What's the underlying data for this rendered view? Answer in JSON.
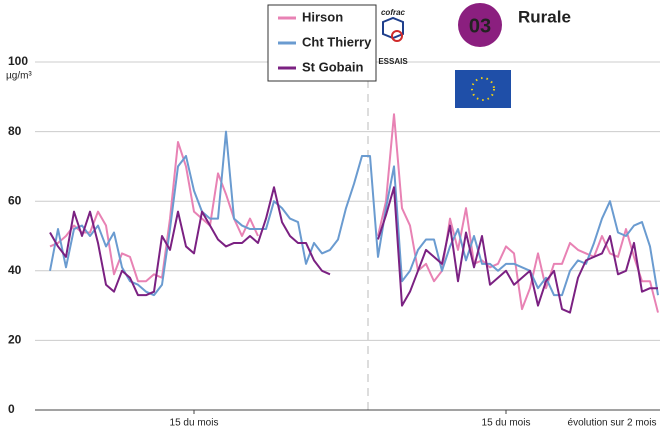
{
  "chart_data": {
    "type": "line",
    "title": "Rurale",
    "badge": "03",
    "unit": "µg/m³",
    "logos": [
      "cofrac",
      "ESSAIS"
    ],
    "annotation": "évolution sur 2 mois",
    "categories": [
      null,
      null,
      null,
      null,
      null,
      null,
      null,
      null,
      null,
      null,
      null,
      null,
      null,
      null,
      null,
      null,
      null,
      null,
      "15 du mois",
      null,
      null,
      null,
      null,
      null,
      null,
      null,
      null,
      null,
      null,
      null,
      null,
      null,
      null,
      null,
      null,
      null,
      null,
      null,
      null,
      null,
      null,
      null,
      null,
      null,
      null,
      null,
      null,
      null,
      null,
      null,
      null,
      null,
      null,
      null,
      null,
      null,
      null,
      "15 du mois",
      null,
      null,
      null,
      null,
      null,
      null,
      null,
      null,
      null,
      null,
      null,
      null,
      null,
      null,
      null,
      null,
      null,
      null,
      null
    ],
    "series": [
      {
        "name": "Hirson",
        "color": "#e882b4",
        "values": [
          47,
          48,
          50,
          53,
          51,
          51,
          57,
          53,
          39,
          45,
          44,
          37,
          37,
          39,
          38,
          55,
          77,
          70,
          57,
          55,
          53,
          68,
          62,
          55,
          50,
          55,
          50,
          null,
          null,
          null,
          null,
          null,
          null,
          null,
          null,
          null,
          null,
          null,
          null,
          null,
          null,
          50,
          60,
          85,
          58,
          53,
          40,
          42,
          37,
          40,
          55,
          46,
          58,
          42,
          43,
          41,
          42,
          47,
          45,
          29,
          35,
          45,
          35,
          42,
          42,
          48,
          46,
          45,
          44,
          50,
          45,
          44,
          52,
          44,
          37,
          37,
          28
        ]
      },
      {
        "name": "Cht Thierry",
        "color": "#6a9bd0",
        "values": [
          40,
          52,
          41,
          52,
          53,
          50,
          53,
          47,
          51,
          41,
          37,
          36,
          34,
          33,
          36,
          52,
          70,
          73,
          63,
          57,
          55,
          55,
          80,
          55,
          53,
          52,
          52,
          52,
          60,
          58,
          55,
          54,
          42,
          48,
          45,
          46,
          49,
          58,
          65,
          73,
          73,
          44,
          58,
          70,
          37,
          40,
          46,
          49,
          49,
          40,
          47,
          52,
          43,
          50,
          42,
          42,
          40,
          42,
          42,
          41,
          40,
          35,
          38,
          33,
          33,
          40,
          43,
          42,
          48,
          55,
          60,
          51,
          50,
          53,
          54,
          47,
          33
        ]
      },
      {
        "name": "St Gobain",
        "color": "#7b2182",
        "values": [
          51,
          47,
          44,
          57,
          50,
          57,
          48,
          36,
          34,
          40,
          38,
          33,
          33,
          34,
          50,
          46,
          57,
          47,
          45,
          57,
          53,
          49,
          47,
          48,
          48,
          50,
          48,
          55,
          64,
          54,
          50,
          48,
          48,
          43,
          40,
          39,
          null,
          null,
          null,
          null,
          null,
          49,
          56,
          64,
          30,
          34,
          40,
          46,
          44,
          42,
          53,
          37,
          51,
          41,
          50,
          36,
          38,
          40,
          36,
          38,
          40,
          30,
          37,
          40,
          29,
          28,
          38,
          43,
          44,
          45,
          50,
          39,
          40,
          48,
          34,
          35,
          35
        ]
      }
    ],
    "ylim": [
      0,
      105
    ],
    "yticks": [
      0,
      20,
      40,
      60,
      80,
      100
    ],
    "grid": true
  }
}
